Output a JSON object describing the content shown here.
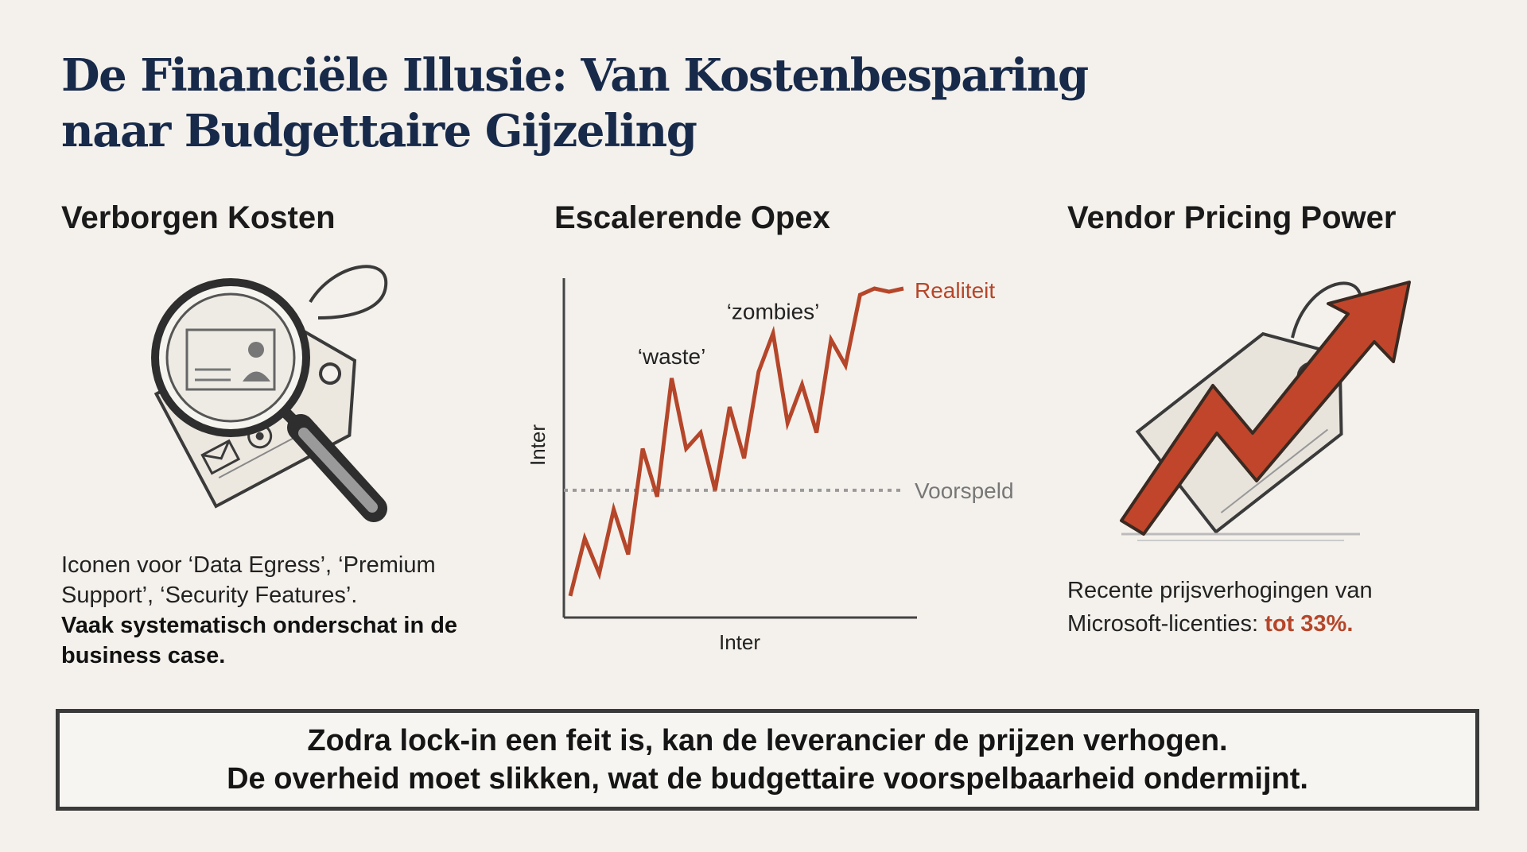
{
  "title": {
    "line1": "De Financiële Illusie: Van Kostenbesparing",
    "line2": "naar Budgettaire Gijzeling"
  },
  "columns": {
    "hidden_costs": {
      "heading": "Verborgen Kosten",
      "text": "Iconen voor ‘Data Egress’, ‘Premium Support’, ‘Security Features’.",
      "emphasis": "Vaak systematisch onderschat in de business case.",
      "icon": "magnifying-glass-over-price-tag"
    },
    "opex": {
      "heading": "Escalerende Opex"
    },
    "vendor": {
      "heading": "Vendor Pricing Power",
      "text": "Recente prijsverhogingen van Microsoft-licenties:",
      "highlight": "tot 33%",
      "suffix": ".",
      "icon": "price-tag-with-rising-arrow"
    }
  },
  "chart_data": {
    "type": "line",
    "xlabel": "Inter",
    "ylabel": "Inter",
    "series": [
      {
        "name": "Realiteit",
        "color": "#b5462a",
        "x": [
          0,
          1,
          2,
          3,
          4,
          5,
          6,
          7,
          8,
          9,
          10,
          11,
          12,
          13,
          14,
          15,
          16,
          17,
          18,
          19,
          20,
          21,
          22,
          23
        ],
        "y": [
          4,
          22,
          11,
          31,
          17,
          50,
          35,
          72,
          50,
          55,
          37,
          63,
          47,
          74,
          86,
          58,
          70,
          55,
          84,
          76,
          98,
          100,
          99,
          100
        ]
      },
      {
        "name": "Voorspeld",
        "color": "#9a9a9a",
        "style": "dotted",
        "x": [
          0,
          23
        ],
        "y": [
          37,
          37
        ]
      }
    ],
    "annotations": [
      "‘waste’",
      "‘zombies’"
    ],
    "ylim": [
      0,
      100
    ]
  },
  "banner": {
    "line1": "Zodra lock-in een feit is, kan de leverancier de prijzen verhogen.",
    "line2": "De overheid moet slikken, wat de budgettaire voorspelbaarheid ondermijnt."
  }
}
